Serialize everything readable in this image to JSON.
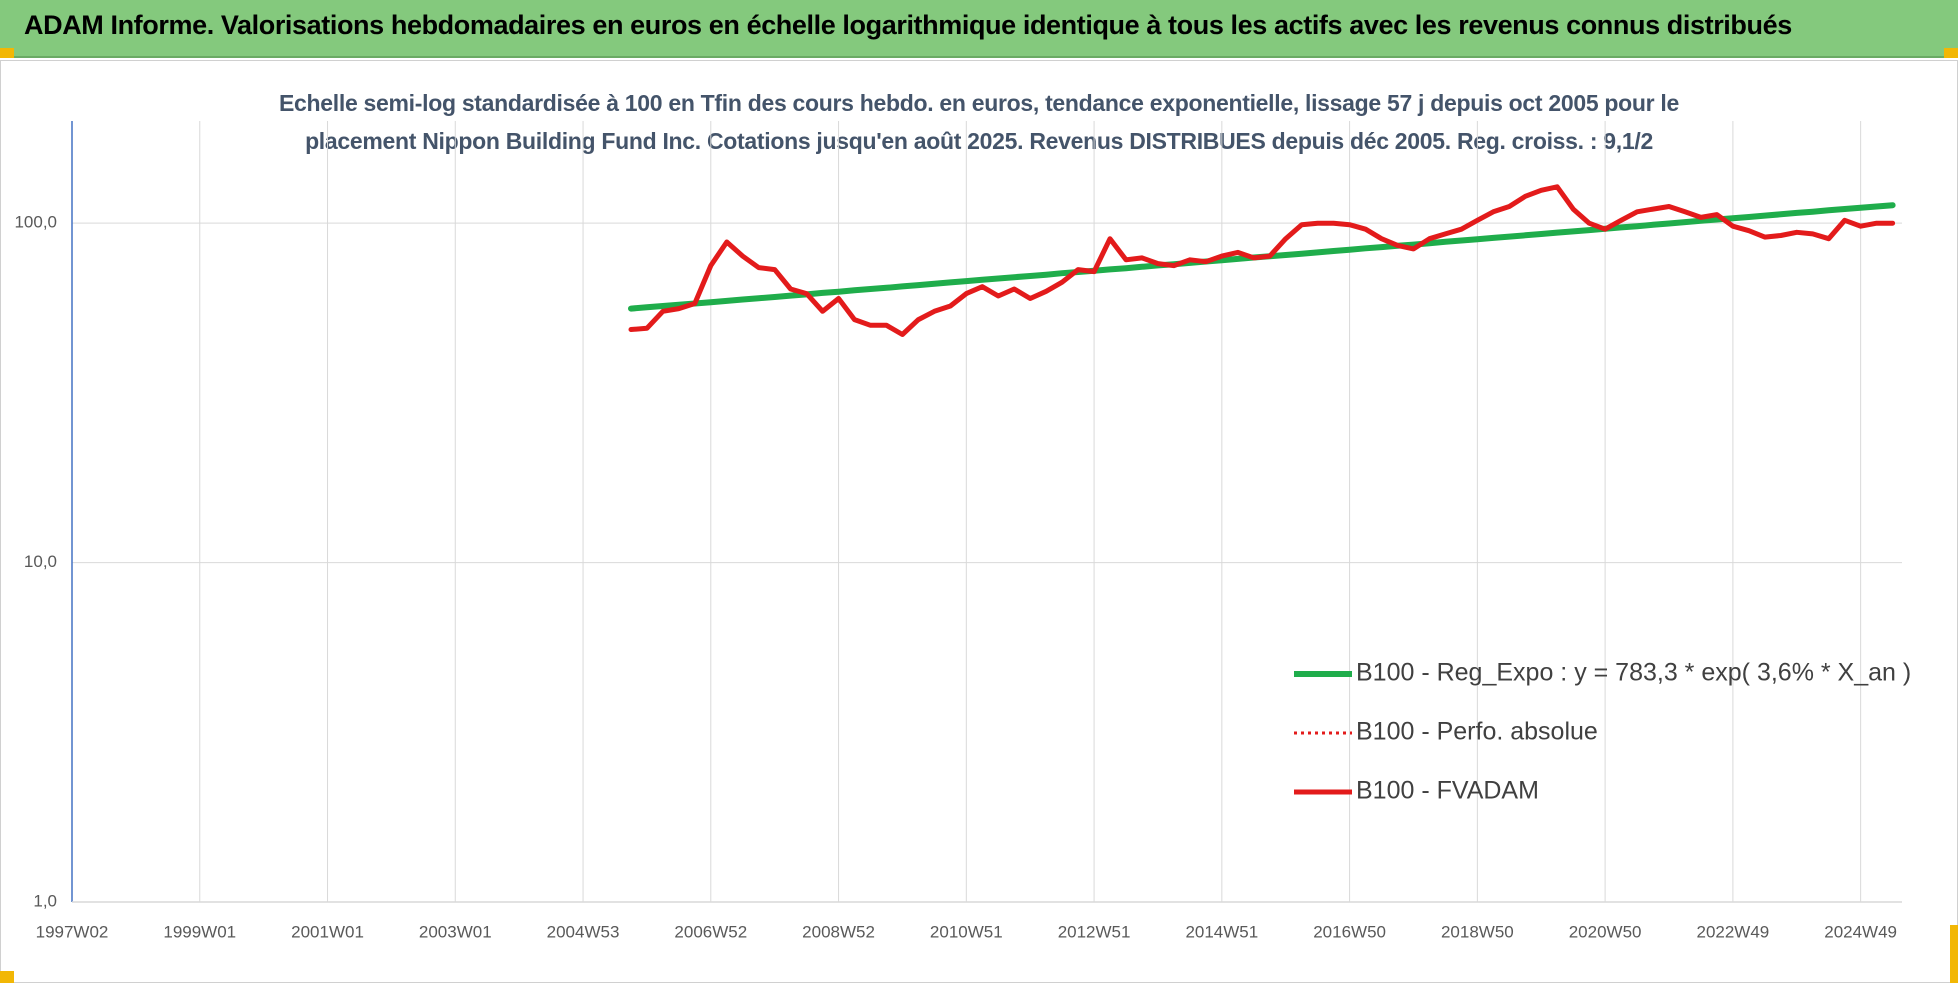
{
  "chart_data": {
    "type": "line",
    "banner": "ADAM Informe. Valorisations hebdomadaires en euros en échelle logarithmique identique à tous les actifs avec les revenus connus distribués",
    "title": "Echelle semi-log standardisée à 100 en Tfin des cours hebdo. en euros, tendance exponentielle, lissage 57 j depuis oct 2005 pour le placement Nippon Building Fund Inc. Cotations jusqu'en août 2025. Revenus DISTRIBUES depuis déc 2005. Reg. croiss. : 9,1/2",
    "log_scale": true,
    "grid": true,
    "legend_position": "right",
    "ylim": [
      1,
      200
    ],
    "yticks": [
      {
        "value": 1,
        "label": "1,0"
      },
      {
        "value": 10,
        "label": "10,0"
      },
      {
        "value": 100,
        "label": "100,0"
      }
    ],
    "categories": [
      "1997W02",
      null,
      null,
      null,
      null,
      null,
      null,
      null,
      "1999W01",
      null,
      null,
      null,
      null,
      null,
      null,
      null,
      "2001W01",
      null,
      null,
      null,
      null,
      null,
      null,
      null,
      "2003W01",
      null,
      null,
      null,
      null,
      null,
      null,
      null,
      "2004W53",
      null,
      null,
      null,
      null,
      null,
      null,
      null,
      "2006W52",
      null,
      null,
      null,
      null,
      null,
      null,
      null,
      "2008W52",
      null,
      null,
      null,
      null,
      null,
      null,
      null,
      "2010W51",
      null,
      null,
      null,
      null,
      null,
      null,
      null,
      "2012W51",
      null,
      null,
      null,
      null,
      null,
      null,
      null,
      "2014W51",
      null,
      null,
      null,
      null,
      null,
      null,
      null,
      "2016W50",
      null,
      null,
      null,
      null,
      null,
      null,
      null,
      "2018W50",
      null,
      null,
      null,
      null,
      null,
      null,
      null,
      "2020W50",
      null,
      null,
      null,
      null,
      null,
      null,
      null,
      "2022W49",
      null,
      null,
      null,
      null,
      null,
      null,
      null,
      "2024W49",
      null,
      null
    ],
    "series": [
      {
        "name": "B100 - Reg_Expo : y = 783,3 * exp( 3,6% *  X_an )",
        "color": "#1fad4b",
        "line_style": "solid",
        "width": 6,
        "values": [
          null,
          null,
          null,
          null,
          null,
          null,
          null,
          null,
          null,
          null,
          null,
          null,
          null,
          null,
          null,
          null,
          null,
          null,
          null,
          null,
          null,
          null,
          null,
          null,
          null,
          null,
          null,
          null,
          null,
          null,
          null,
          null,
          null,
          null,
          null,
          56.0,
          56.5,
          57.0,
          57.5,
          58.0,
          58.5,
          59.0,
          59.6,
          60.1,
          60.6,
          61.2,
          61.7,
          62.3,
          62.8,
          63.4,
          64.0,
          64.5,
          65.1,
          65.7,
          66.3,
          66.9,
          67.5,
          68.1,
          68.7,
          69.3,
          69.9,
          70.5,
          71.2,
          71.8,
          72.4,
          73.1,
          73.7,
          74.4,
          75.1,
          75.7,
          76.4,
          77.1,
          77.8,
          78.5,
          79.2,
          79.9,
          80.6,
          81.3,
          82.0,
          82.8,
          83.5,
          84.3,
          85.0,
          85.8,
          86.5,
          87.3,
          88.1,
          88.9,
          89.7,
          90.5,
          91.3,
          92.1,
          92.9,
          93.8,
          94.6,
          95.4,
          96.3,
          97.2,
          98.0,
          98.9,
          99.8,
          100.7,
          101.6,
          102.5,
          103.4,
          104.3,
          105.3,
          106.2,
          107.2,
          108.1,
          109.1,
          110.1,
          111.0,
          112.0,
          113.0
        ]
      },
      {
        "name": "B100 - Perfo. absolue",
        "color": "#e31b1b",
        "line_style": "dotted",
        "width": 3,
        "values": [
          null,
          null,
          null,
          null,
          null,
          null,
          null,
          null,
          null,
          null,
          null,
          null,
          null,
          null,
          null,
          null,
          null,
          null,
          null,
          null,
          null,
          null,
          null,
          null,
          null,
          null,
          null,
          null,
          null,
          null,
          null,
          null,
          null,
          null,
          null,
          48.6,
          49,
          55,
          56,
          58,
          75,
          88,
          80,
          74,
          73,
          64,
          62,
          55,
          60,
          52,
          50,
          50,
          47,
          52,
          55,
          57,
          62,
          65,
          61,
          64,
          60,
          63,
          67,
          73,
          72,
          90,
          78,
          79,
          76,
          75,
          78,
          77,
          80,
          82,
          79,
          80,
          90,
          99,
          100,
          100,
          99,
          96,
          90,
          86,
          84,
          90,
          93,
          96,
          102,
          108,
          112,
          120,
          125,
          128,
          110,
          100,
          96,
          102,
          108,
          110,
          112,
          108,
          104,
          106,
          98,
          95,
          91,
          92,
          94,
          93,
          90,
          102,
          98,
          100,
          100
        ]
      },
      {
        "name": "B100 - FVADAM",
        "color": "#e31b1b",
        "line_style": "solid",
        "width": 5,
        "values": [
          null,
          null,
          null,
          null,
          null,
          null,
          null,
          null,
          null,
          null,
          null,
          null,
          null,
          null,
          null,
          null,
          null,
          null,
          null,
          null,
          null,
          null,
          null,
          null,
          null,
          null,
          null,
          null,
          null,
          null,
          null,
          null,
          null,
          null,
          null,
          48.6,
          49,
          55,
          56,
          58,
          75,
          88,
          80,
          74,
          73,
          64,
          62,
          55,
          60,
          52,
          50,
          50,
          47,
          52,
          55,
          57,
          62,
          65,
          61,
          64,
          60,
          63,
          67,
          73,
          72,
          90,
          78,
          79,
          76,
          75,
          78,
          77,
          80,
          82,
          79,
          80,
          90,
          99,
          100,
          100,
          99,
          96,
          90,
          86,
          84,
          90,
          93,
          96,
          102,
          108,
          112,
          120,
          125,
          128,
          110,
          100,
          96,
          102,
          108,
          110,
          112,
          108,
          104,
          106,
          98,
          95,
          91,
          92,
          94,
          93,
          90,
          102,
          98,
          100,
          100
        ]
      }
    ]
  }
}
